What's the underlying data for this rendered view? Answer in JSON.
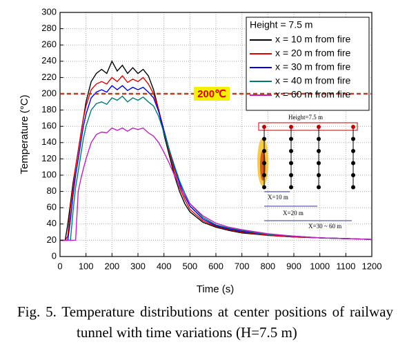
{
  "chart_data": {
    "type": "line",
    "xlabel": "Time (s)",
    "ylabel": "Temperature (°C)",
    "x": [
      0,
      20,
      30,
      40,
      50,
      60,
      70,
      80,
      90,
      100,
      120,
      140,
      160,
      180,
      200,
      220,
      240,
      260,
      280,
      300,
      320,
      340,
      360,
      380,
      400,
      420,
      440,
      460,
      480,
      500,
      550,
      600,
      650,
      700,
      800,
      900,
      1000,
      1100,
      1200
    ],
    "series": [
      {
        "name": "x = 10 m from fire",
        "color": "#000000",
        "values": [
          20,
          20,
          40,
          65,
          90,
          110,
          130,
          150,
          170,
          190,
          215,
          225,
          230,
          225,
          240,
          228,
          235,
          225,
          232,
          225,
          230,
          222,
          205,
          180,
          150,
          125,
          100,
          80,
          65,
          55,
          42,
          36,
          32,
          29,
          26,
          24,
          23,
          22,
          21
        ]
      },
      {
        "name": "x = 20 m from fire",
        "color": "#e00000",
        "values": [
          20,
          20,
          25,
          60,
          85,
          110,
          130,
          150,
          170,
          185,
          205,
          212,
          215,
          212,
          220,
          215,
          222,
          214,
          218,
          215,
          220,
          212,
          200,
          180,
          155,
          130,
          105,
          85,
          70,
          58,
          44,
          37,
          33,
          30,
          26,
          24,
          23,
          22,
          21
        ]
      },
      {
        "name": "x = 30 m from fire",
        "color": "#0000e0",
        "values": [
          20,
          20,
          20,
          45,
          75,
          100,
          120,
          140,
          160,
          175,
          195,
          202,
          205,
          202,
          210,
          205,
          210,
          204,
          208,
          205,
          208,
          202,
          195,
          178,
          155,
          132,
          110,
          90,
          74,
          62,
          46,
          38,
          34,
          31,
          27,
          25,
          23,
          22,
          21
        ]
      },
      {
        "name": "x = 40 m from fire",
        "color": "#007a70",
        "values": [
          20,
          20,
          20,
          20,
          55,
          85,
          105,
          125,
          145,
          160,
          180,
          188,
          190,
          187,
          195,
          192,
          197,
          190,
          195,
          192,
          196,
          190,
          185,
          172,
          152,
          132,
          112,
          93,
          78,
          65,
          48,
          39,
          35,
          32,
          27,
          25,
          23,
          22,
          21
        ]
      },
      {
        "name": "x = 60 m from fire",
        "color": "#c020c0",
        "values": [
          20,
          20,
          20,
          20,
          20,
          20,
          80,
          95,
          108,
          120,
          140,
          150,
          153,
          152,
          158,
          155,
          158,
          154,
          158,
          156,
          158,
          152,
          148,
          140,
          128,
          115,
          100,
          87,
          75,
          65,
          50,
          41,
          36,
          33,
          28,
          25,
          23,
          22,
          21
        ]
      }
    ],
    "legend_title": "Height = 7.5 m",
    "threshold": {
      "value": 200,
      "label": "200℃",
      "color": "#b04020"
    },
    "inset": {
      "height_label": "Height=7.5 m",
      "distance_labels": [
        "X=10 m",
        "X=20 m",
        "X=30 ~ 60 m"
      ]
    },
    "xlim": [
      0,
      1200
    ],
    "xticks": [
      0,
      100,
      200,
      300,
      400,
      500,
      600,
      700,
      800,
      900,
      1000,
      1100,
      1200
    ],
    "ylim": [
      0,
      300
    ],
    "yticks": [
      0,
      20,
      40,
      60,
      80,
      100,
      120,
      140,
      160,
      180,
      200,
      220,
      240,
      260,
      280,
      300
    ],
    "grid": true
  },
  "caption": "Fig. 5. Temperature distributions at center positions of railway tunnel with time variations (H=7.5 m)"
}
